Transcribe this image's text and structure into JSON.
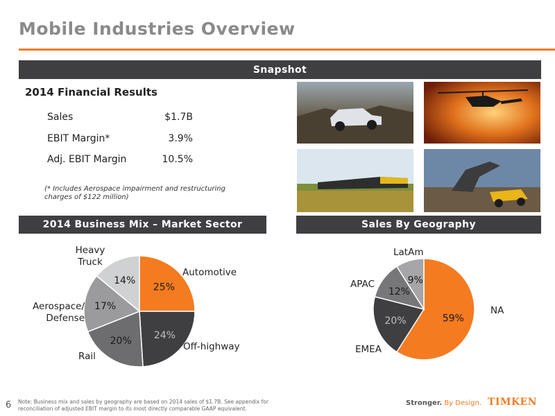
{
  "header": {
    "title": "Mobile Industries Overview"
  },
  "snapshot": {
    "label": "Snapshot"
  },
  "financials": {
    "heading": "2014 Financial Results",
    "rows": [
      {
        "label": "Sales",
        "value": "$1.7B"
      },
      {
        "label": "EBIT Margin*",
        "value": "3.9%"
      },
      {
        "label": "Adj. EBIT Margin",
        "value": "10.5%"
      }
    ],
    "footnote": "(* Includes Aerospace impairment and restructuring charges of $122 million)"
  },
  "mix": {
    "label": "2014 Business Mix – Market Sector",
    "labels": [
      "Automotive",
      "Off-highway",
      "Rail",
      "Aerospace/ Defense",
      "Heavy Truck"
    ]
  },
  "geo": {
    "label": "Sales By Geography",
    "labels": [
      "NA",
      "EMEA",
      "APAC",
      "LatAm"
    ]
  },
  "chart_data": [
    {
      "type": "pie",
      "categories": [
        "Automotive",
        "Off-highway",
        "Rail",
        "Aerospace/ Defense",
        "Heavy Truck"
      ],
      "values": [
        25,
        24,
        20,
        17,
        14
      ],
      "value_labels": [
        "25%",
        "24%",
        "20%",
        "17%",
        "14%"
      ],
      "colors": [
        "#f47b20",
        "#3f3f41",
        "#6d6d6f",
        "#9b9b9d",
        "#d0d1d3"
      ]
    },
    {
      "type": "pie",
      "categories": [
        "NA",
        "EMEA",
        "APAC",
        "LatAm"
      ],
      "values": [
        59,
        20,
        12,
        9
      ],
      "value_labels": [
        "59%",
        "20%",
        "12%",
        "9%"
      ],
      "colors": [
        "#f47b20",
        "#3f3f41",
        "#77777a",
        "#a6a6a8"
      ]
    }
  ],
  "footer": {
    "note": "Note: Business mix and sales by geography are based on 2014 sales of $1.7B. See appendix for reconciliation of adjusted EBIT margin to its most directly comparable GAAP equivalent.",
    "page": "6",
    "tagline_a": "Stronger.",
    "tagline_b": " By Design.",
    "logo": "TIMKEN"
  }
}
